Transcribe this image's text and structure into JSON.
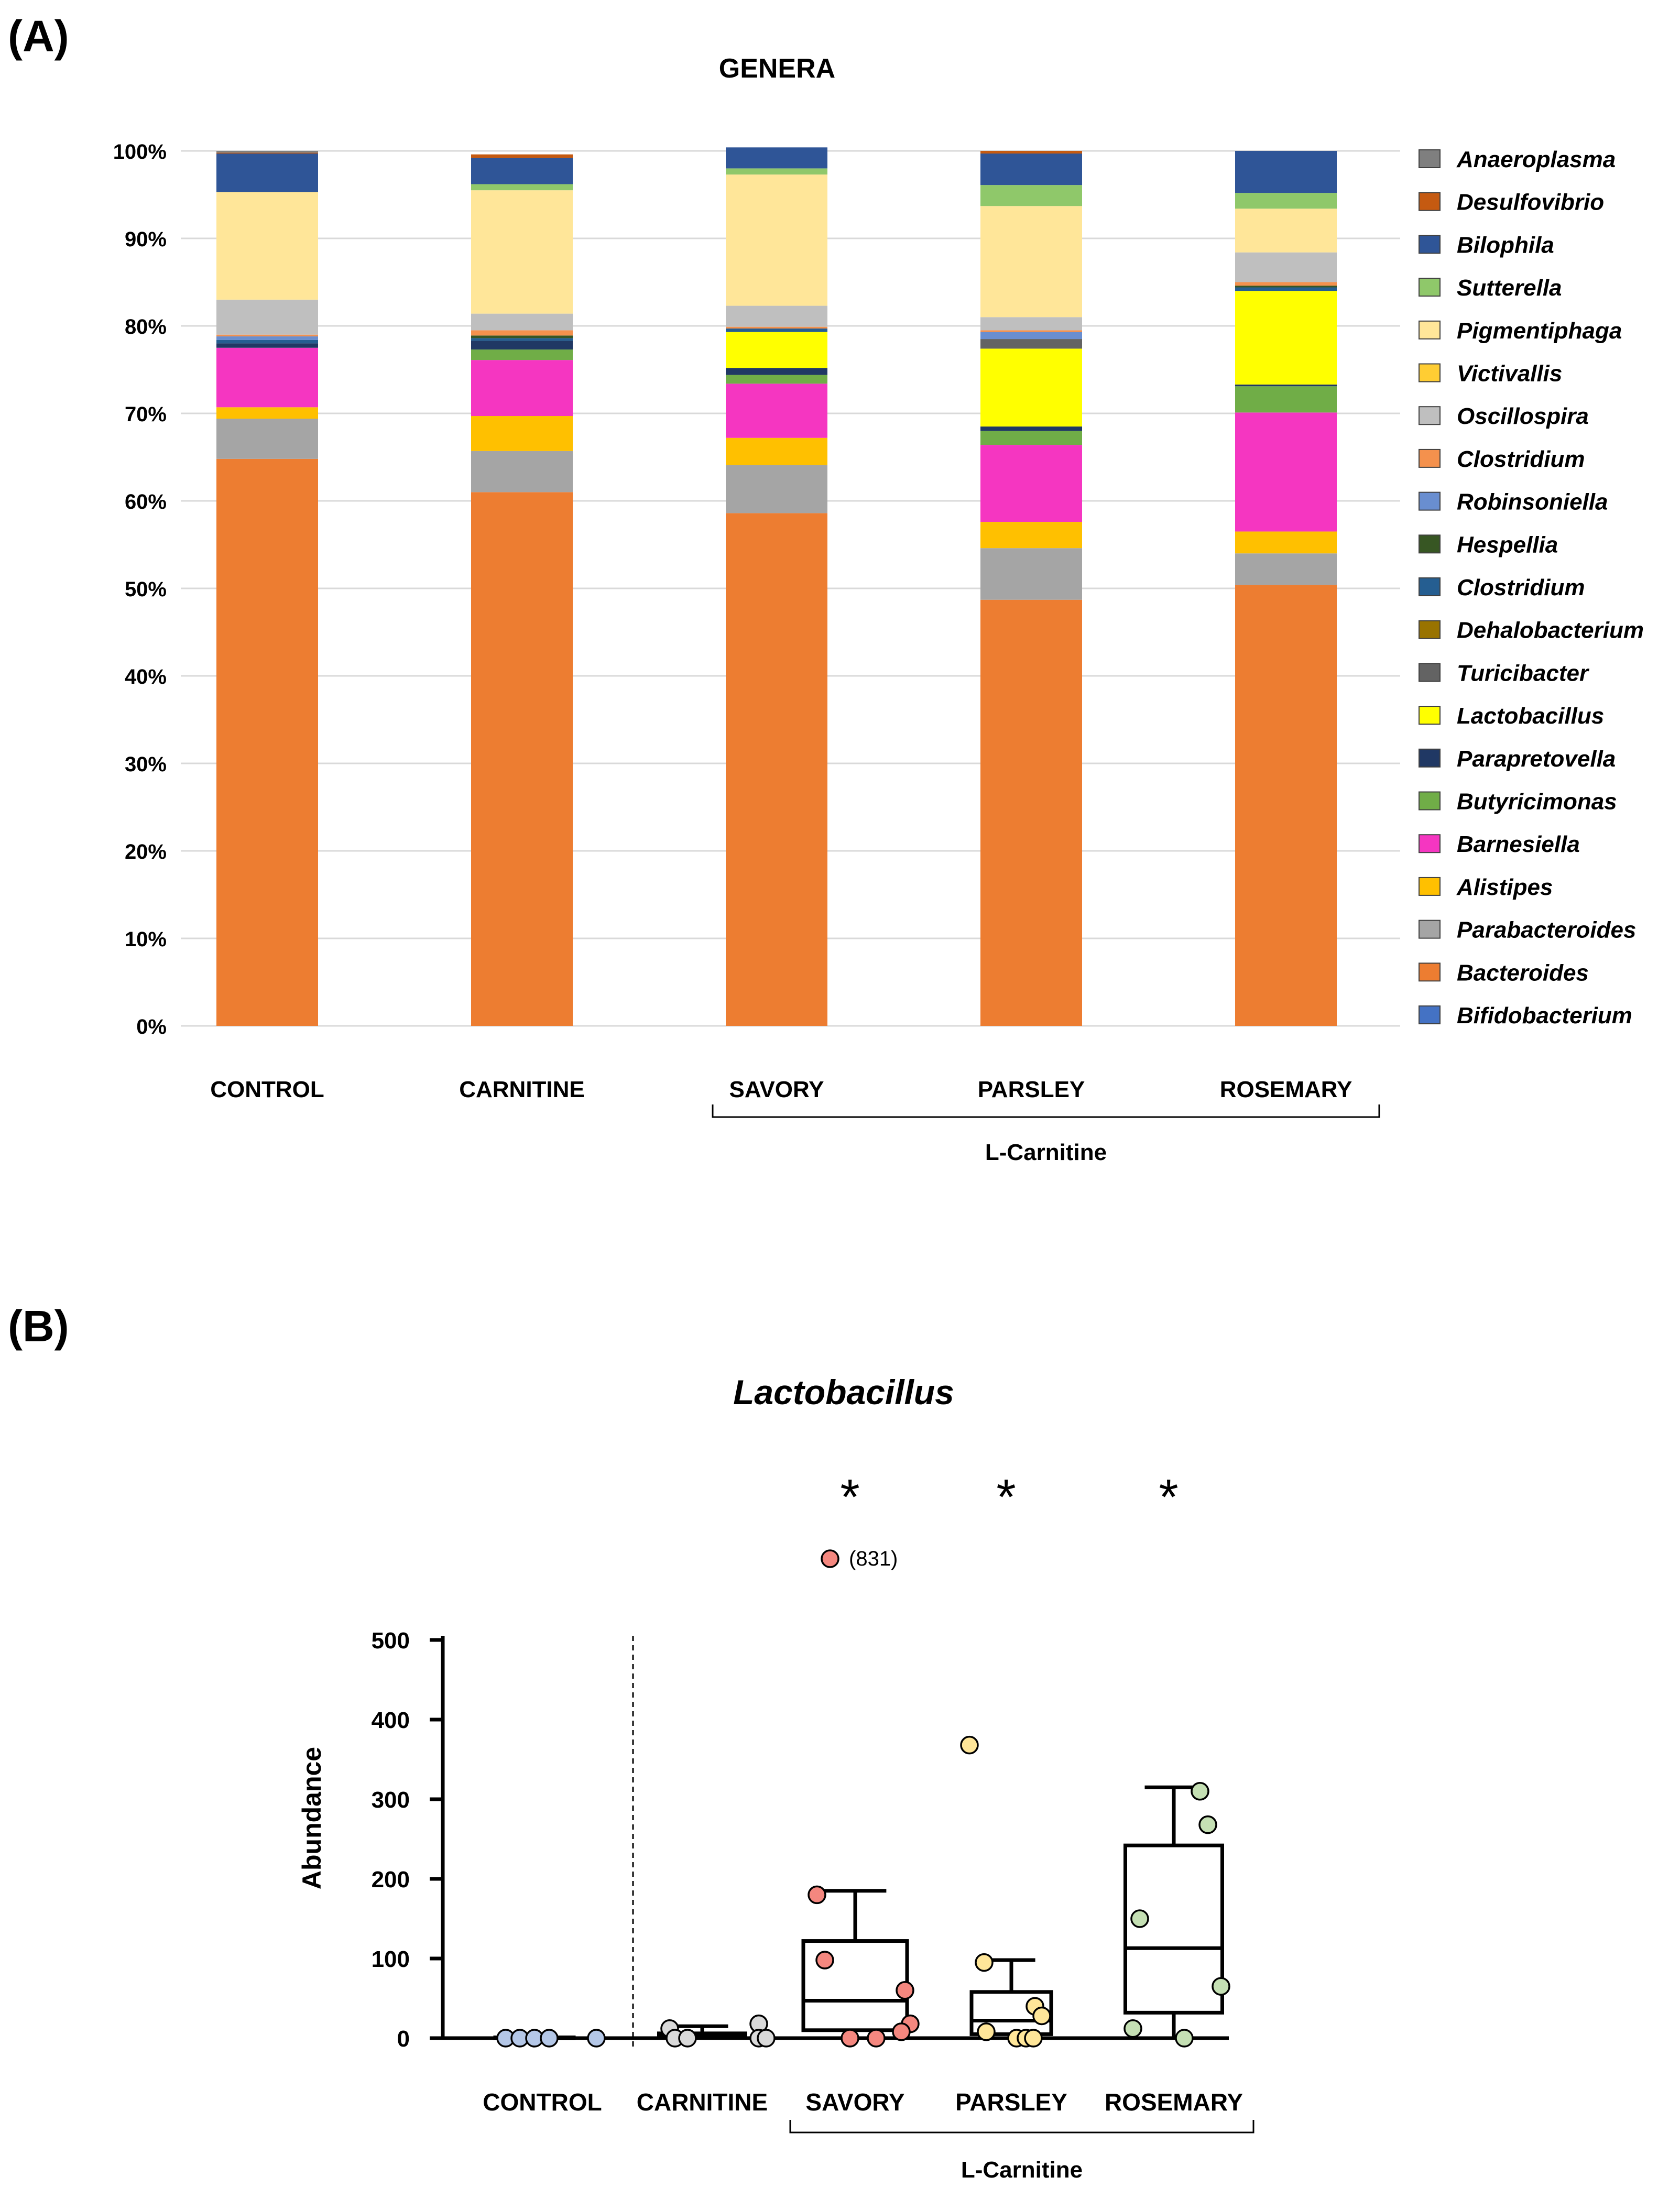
{
  "panel_a": {
    "panel_label": "(A)"
  },
  "panel_b": {
    "panel_label": "(B)"
  },
  "chart_data": [
    {
      "type": "bar",
      "stacked": true,
      "title": "GENERA",
      "categories": [
        "CONTROL",
        "CARNITINE",
        "SAVORY",
        "PARSLEY",
        "ROSEMARY"
      ],
      "group_label": "L-Carnitine",
      "group_members": [
        "SAVORY",
        "PARSLEY",
        "ROSEMARY"
      ],
      "y_tick_labels": [
        "0%",
        "10%",
        "20%",
        "30%",
        "40%",
        "50%",
        "60%",
        "70%",
        "80%",
        "90%",
        "100%"
      ],
      "ylim": [
        0,
        100
      ],
      "grid": true,
      "legend_position": "right",
      "series": [
        {
          "name": "Bifidobacterium",
          "color": "#4472C4",
          "values": [
            0,
            0,
            0,
            0,
            0
          ]
        },
        {
          "name": "Bacteroides",
          "color": "#ED7D31",
          "values": [
            64.8,
            61.0,
            58.6,
            48.7,
            50.4
          ]
        },
        {
          "name": "Parabacteroides",
          "color": "#A5A5A5",
          "values": [
            4.6,
            4.7,
            5.5,
            5.9,
            3.6
          ]
        },
        {
          "name": "Alistipes",
          "color": "#FFC000",
          "values": [
            1.3,
            4.0,
            3.1,
            3.0,
            2.5
          ]
        },
        {
          "name": "Barnesiella",
          "color": "#F536C1",
          "values": [
            6.8,
            6.4,
            6.2,
            8.8,
            13.6
          ]
        },
        {
          "name": "Butyricimonas",
          "color": "#70AD47",
          "values": [
            0,
            1.2,
            1.0,
            1.6,
            3.0
          ]
        },
        {
          "name": "Parapretovella",
          "color": "#203864",
          "values": [
            0.5,
            1.0,
            0.8,
            0.5,
            0.2
          ]
        },
        {
          "name": "Lactobacillus",
          "color": "#FFFF00",
          "values": [
            0,
            0,
            4.1,
            8.9,
            10.7
          ]
        },
        {
          "name": "Turicibacter",
          "color": "#636363",
          "values": [
            0,
            0,
            0,
            1.1,
            0
          ]
        },
        {
          "name": "Dehalobacterium",
          "color": "#997300",
          "values": [
            0,
            0,
            0,
            0,
            0
          ]
        },
        {
          "name": "Clostridium",
          "color": "#255E91",
          "values": [
            0.4,
            0.3,
            0.4,
            0,
            0.4
          ]
        },
        {
          "name": "Hespellia",
          "color": "#375623",
          "values": [
            0,
            0.3,
            0,
            0,
            0.2
          ]
        },
        {
          "name": "Robinsoniella",
          "color": "#698ED0",
          "values": [
            0.4,
            0,
            0,
            0.8,
            0
          ]
        },
        {
          "name": "Clostridium",
          "color": "#F4914D",
          "values": [
            0.2,
            0.6,
            0.2,
            0.2,
            0.4
          ]
        },
        {
          "name": "Oscillospira",
          "color": "#BFBFBF",
          "values": [
            4.0,
            1.9,
            2.4,
            1.5,
            3.4
          ]
        },
        {
          "name": "Victivallis",
          "color": "#FFCD33",
          "values": [
            0,
            0,
            0,
            0,
            0
          ]
        },
        {
          "name": "Pigmentiphaga",
          "color": "#FFE699",
          "values": [
            12.3,
            14.1,
            15.0,
            12.7,
            5.0
          ]
        },
        {
          "name": "Sutterella",
          "color": "#8FC86A",
          "values": [
            0,
            0.7,
            0.7,
            2.4,
            1.8
          ]
        },
        {
          "name": "Bilophila",
          "color": "#2F5597",
          "values": [
            4.4,
            3.0,
            2.4,
            3.6,
            4.8
          ]
        },
        {
          "name": "Desulfovibrio",
          "color": "#C55A11",
          "values": [
            0.1,
            0.4,
            0,
            0.3,
            0
          ]
        },
        {
          "name": "Anaeroplasma",
          "color": "#7F7F7F",
          "values": [
            0.2,
            0,
            0,
            0,
            0
          ]
        }
      ]
    },
    {
      "type": "box",
      "title": "Lactobacillus",
      "ylabel": "Abundance",
      "ylim": [
        0,
        500
      ],
      "y_tick_labels": [
        "0",
        "100",
        "200",
        "300",
        "400",
        "500"
      ],
      "categories": [
        "CONTROL",
        "CARNITINE",
        "SAVORY",
        "PARSLEY",
        "ROSEMARY"
      ],
      "group_label": "L-Carnitine",
      "group_members": [
        "SAVORY",
        "PARSLEY",
        "ROSEMARY"
      ],
      "significance": [
        "",
        "",
        "*",
        "*",
        "*"
      ],
      "outlier_note": "(831)",
      "outlier_group": "SAVORY",
      "outlier_value": 831,
      "groups": [
        {
          "name": "CONTROL",
          "color": "#B4C7E7",
          "stats": {
            "min": 0,
            "q1": 0,
            "median": 0,
            "q3": 1,
            "max": 2
          },
          "points": [
            0,
            0,
            0,
            0,
            0
          ]
        },
        {
          "name": "CARNITINE",
          "color": "#D9D9D9",
          "stats": {
            "min": 0,
            "q1": 0,
            "median": 2,
            "q3": 6,
            "max": 15
          },
          "points": [
            12,
            0,
            0,
            18,
            0,
            0
          ]
        },
        {
          "name": "SAVORY",
          "color": "#F4877F",
          "stats": {
            "min": 0,
            "q1": 10,
            "median": 47,
            "q3": 122,
            "max": 185
          },
          "points": [
            831,
            180,
            98,
            60,
            18,
            8,
            0,
            0
          ]
        },
        {
          "name": "PARSLEY",
          "color": "#FFE699",
          "stats": {
            "min": 0,
            "q1": 5,
            "median": 22,
            "q3": 58,
            "max": 98
          },
          "points": [
            368,
            95,
            40,
            28,
            8,
            0,
            0,
            0
          ]
        },
        {
          "name": "ROSEMARY",
          "color": "#C5E0B4",
          "stats": {
            "min": 0,
            "q1": 32,
            "median": 113,
            "q3": 242,
            "max": 315
          },
          "points": [
            310,
            268,
            150,
            65,
            12,
            0
          ]
        }
      ]
    }
  ]
}
